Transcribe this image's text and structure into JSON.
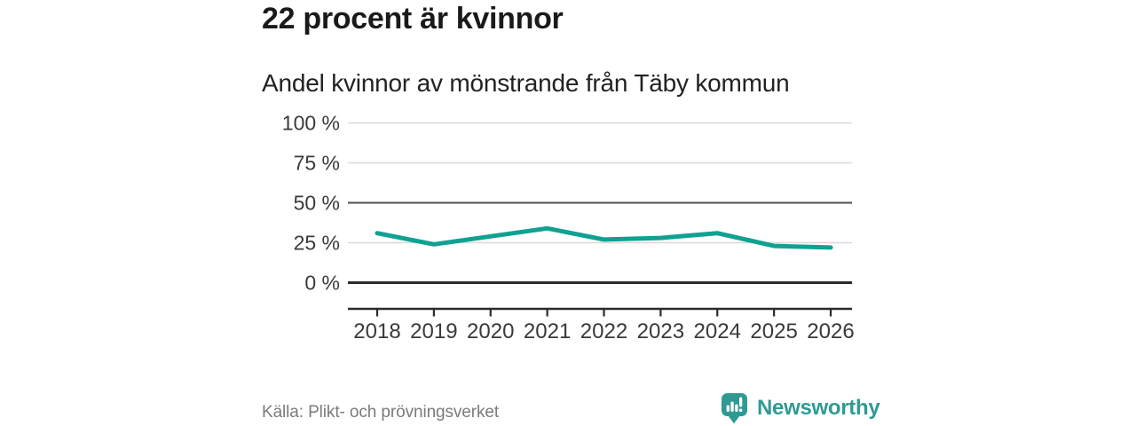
{
  "header": {
    "title": "22 procent är kvinnor",
    "subtitle": "Andel kvinnor av mönstrande från Täby kommun"
  },
  "chart_data": {
    "type": "line",
    "title": "22 procent är kvinnor",
    "subtitle": "Andel kvinnor av mönstrande från Täby kommun",
    "x": [
      2018,
      2019,
      2020,
      2021,
      2022,
      2023,
      2024,
      2025,
      2026
    ],
    "series": [
      {
        "name": "Andel kvinnor av mönstrande, Täby kommun",
        "values": [
          31,
          24,
          29,
          34,
          27,
          28,
          31,
          23,
          22
        ]
      }
    ],
    "xlabel": "",
    "ylabel": "",
    "ylim": [
      0,
      100
    ],
    "yticks": [
      {
        "value": 0,
        "label": "0 %"
      },
      {
        "value": 25,
        "label": "25 %"
      },
      {
        "value": 50,
        "label": "50 %"
      },
      {
        "value": 75,
        "label": "75 %"
      },
      {
        "value": 100,
        "label": "100 %"
      }
    ],
    "grid": "horizontal",
    "emphasized_gridlines": [
      0,
      50
    ],
    "legend_position": "none"
  },
  "footer": {
    "source": "Källa: Plikt- och prövningsverket",
    "brand": "Newsworthy",
    "logo_icon": "bar-chart-pin-icon"
  },
  "colors": {
    "line": "#10a191",
    "brand": "#2f9a94",
    "grid_light": "#d8d8d8",
    "grid_medium": "#4f4f4f",
    "axis_dark": "#2b2b2b",
    "tick_text": "#3a3a3a",
    "title_text": "#1a1a1a",
    "muted_text": "#7b7b7b"
  }
}
